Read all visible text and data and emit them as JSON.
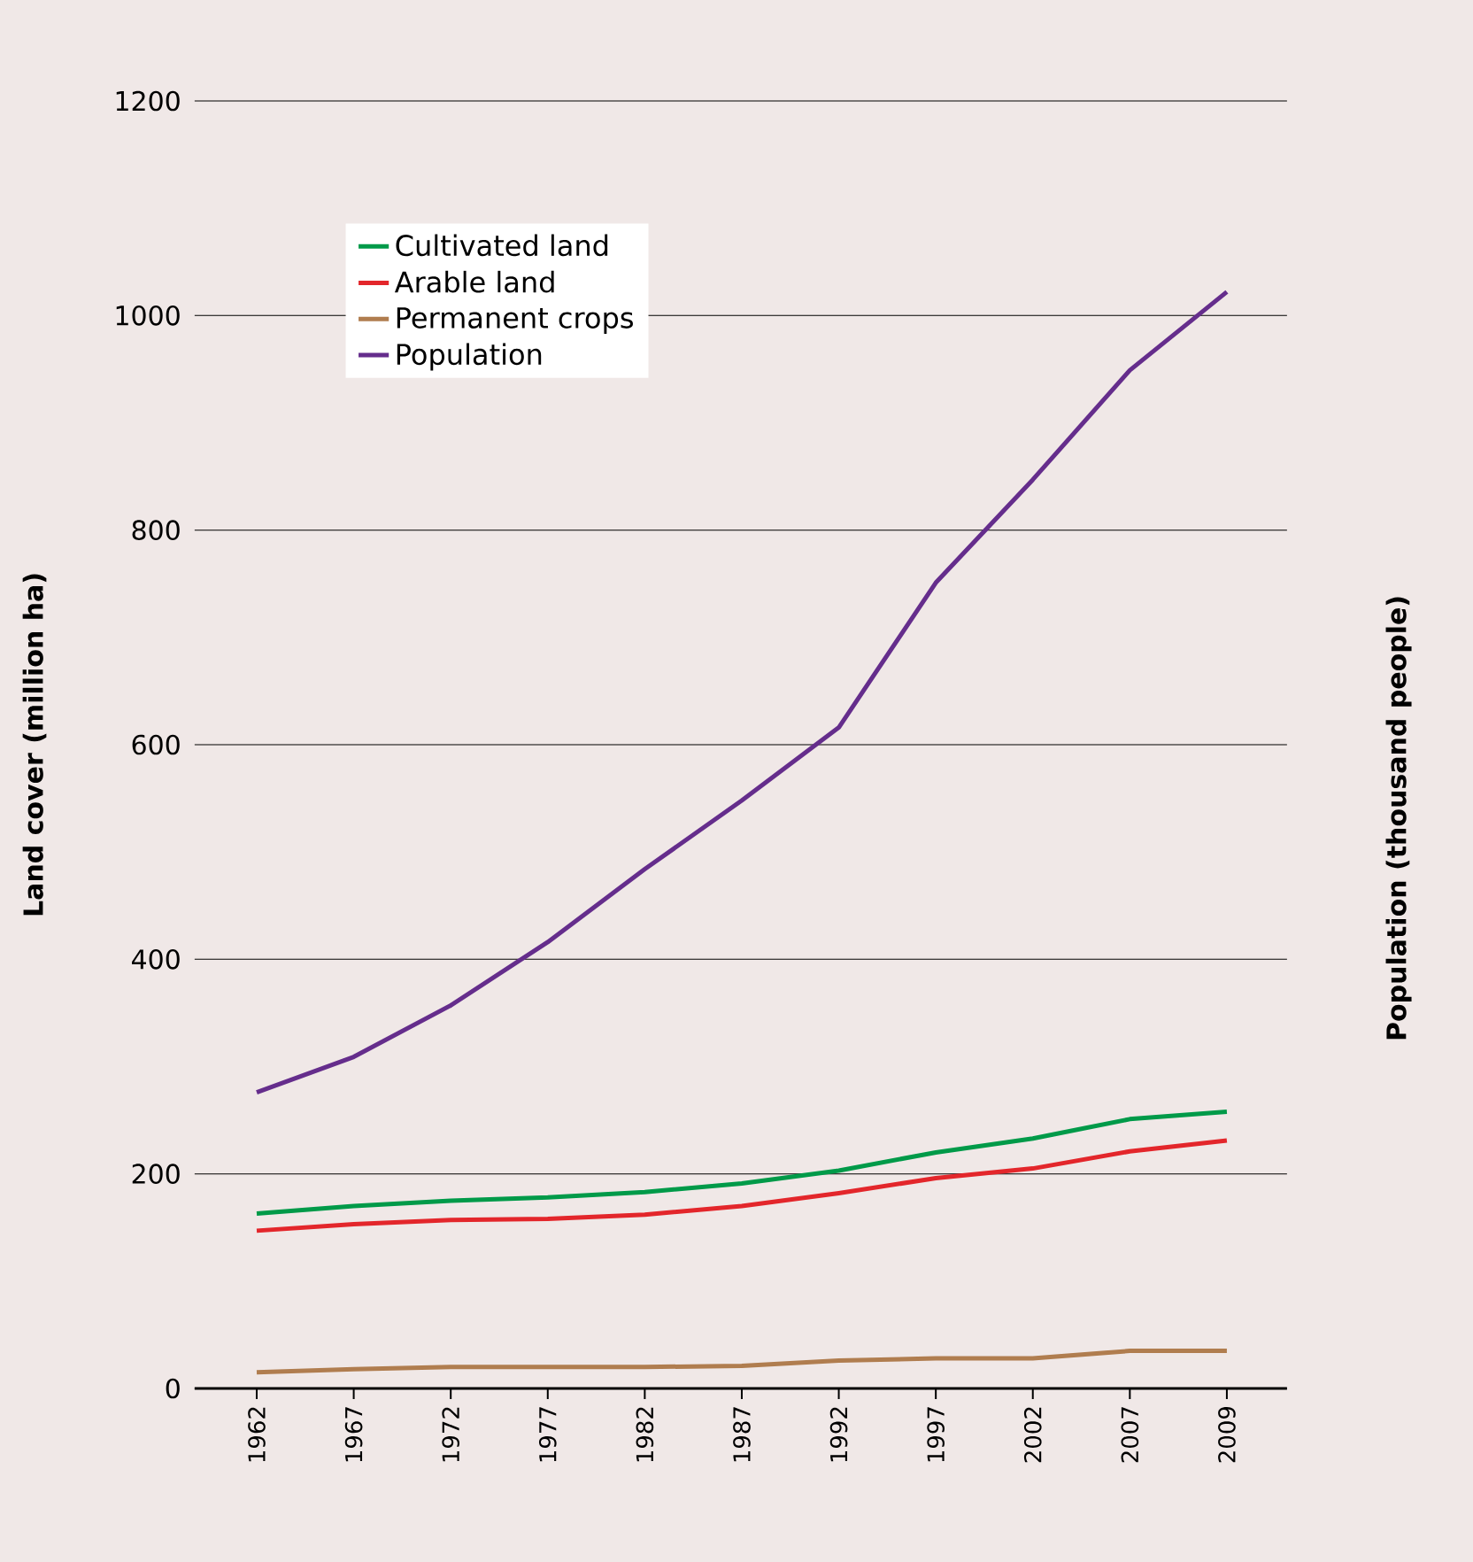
{
  "chart_data": {
    "type": "line",
    "ylabel": "Land cover (million ha)",
    "y2label": "Population  (thousand people)",
    "categories": [
      "1962",
      "1967",
      "1972",
      "1977",
      "1982",
      "1987",
      "1992",
      "1997",
      "2002",
      "2007",
      "2009"
    ],
    "series": [
      {
        "name": "Cultivated land",
        "color": "#009a49",
        "values": [
          163,
          170,
          175,
          178,
          183,
          191,
          203,
          220,
          233,
          251,
          258
        ]
      },
      {
        "name": "Arable land",
        "color": "#e3262b",
        "values": [
          147,
          153,
          157,
          158,
          162,
          170,
          182,
          196,
          205,
          221,
          231
        ]
      },
      {
        "name": "Permanent crops",
        "color": "#b07d4f",
        "values": [
          15,
          18,
          20,
          20,
          20,
          21,
          26,
          28,
          28,
          35,
          35
        ]
      },
      {
        "name": "Population",
        "color": "#652d8c",
        "values": [
          276,
          309,
          357,
          416,
          484,
          548,
          616,
          751,
          847,
          949,
          1022
        ]
      }
    ],
    "ylim": [
      0,
      1200
    ],
    "yticks": [
      0,
      200,
      400,
      600,
      800,
      1000,
      1200
    ],
    "grid": "y",
    "legend": "top left",
    "marker": "none",
    "line_style": "solid"
  }
}
